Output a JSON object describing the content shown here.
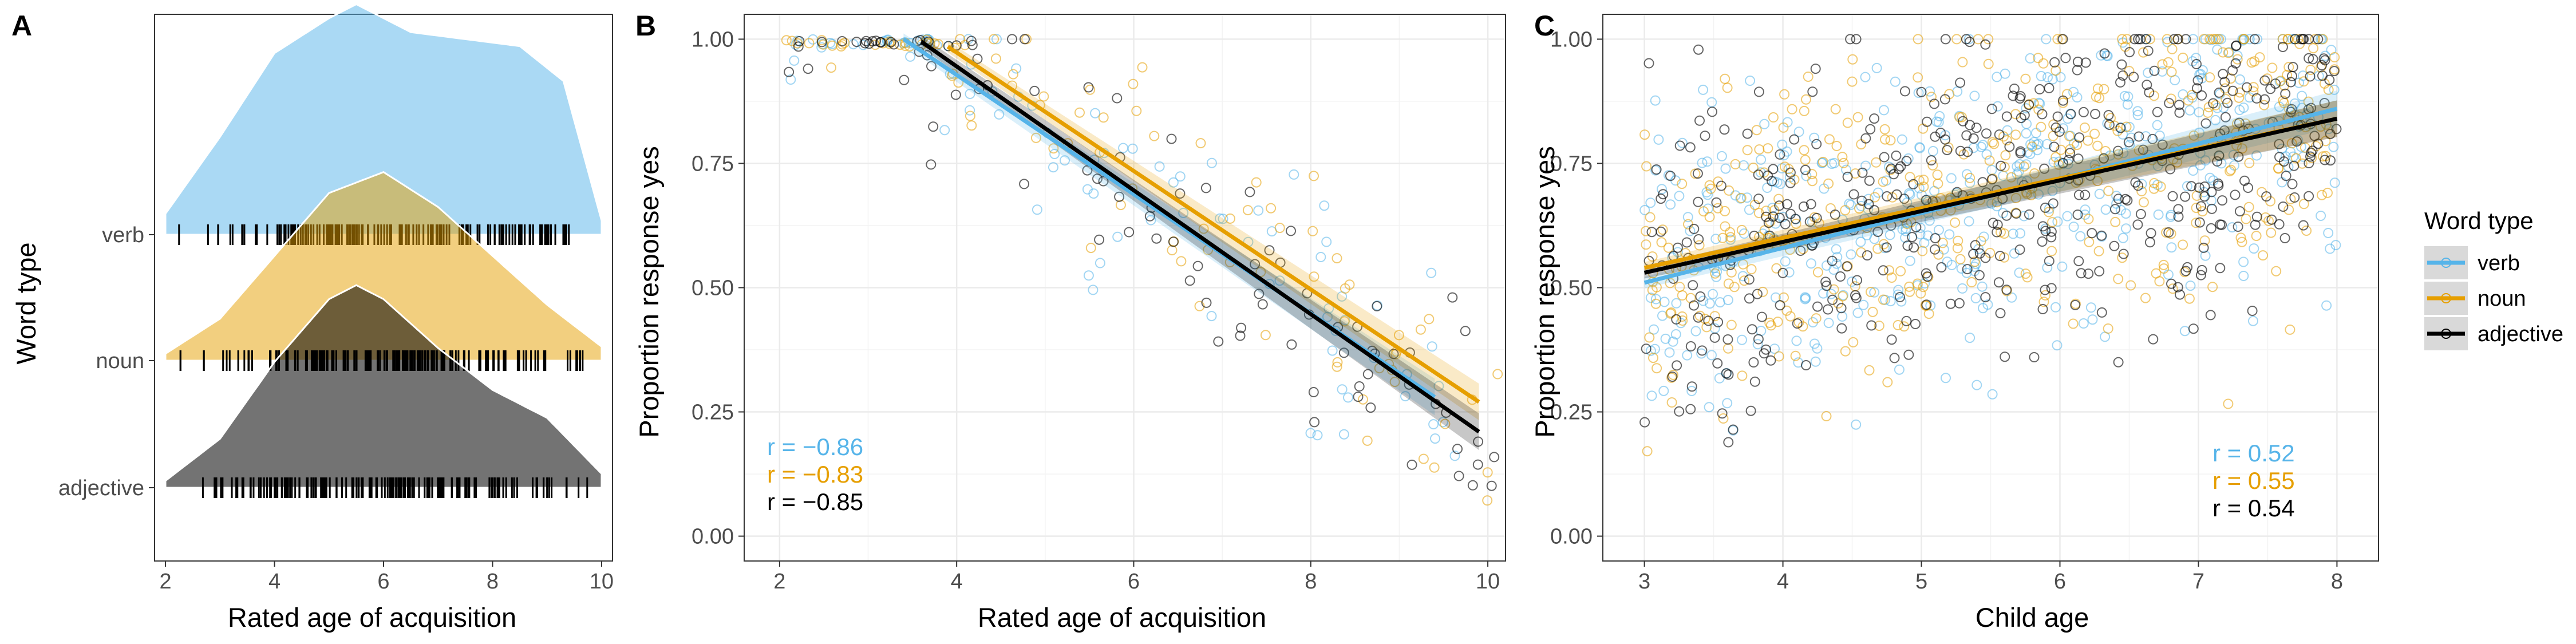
{
  "colors": {
    "verb": "#56B4E9",
    "noun": "#E69F00",
    "adjective": "#000000",
    "grid": "#EBEBEB",
    "border": "#333333",
    "axis_text": "#4D4D4D",
    "legend_key_bg": "#D9D9D9"
  },
  "legend": {
    "title": "Word type",
    "entries": [
      "verb",
      "noun",
      "adjective"
    ]
  },
  "chart_data": [
    {
      "panel": "A",
      "type": "area",
      "xlabel": "Rated age of acquisition",
      "ylabel": "Word type",
      "xlim": [
        1.8,
        10.2
      ],
      "xticks": [
        2,
        4,
        6,
        8,
        10
      ],
      "categories": [
        "verb",
        "noun",
        "adjective"
      ],
      "grid": false,
      "series": [
        {
          "name": "verb",
          "density_x": [
            2.0,
            3.0,
            4.0,
            5.0,
            5.5,
            6.5,
            7.5,
            8.5,
            9.3,
            10.0
          ],
          "density": [
            0.03,
            0.14,
            0.26,
            0.31,
            0.33,
            0.29,
            0.28,
            0.27,
            0.22,
            0.02
          ],
          "range": [
            2.1,
            9.4
          ]
        },
        {
          "name": "noun",
          "density_x": [
            2.0,
            3.0,
            4.0,
            5.0,
            6.0,
            7.0,
            8.0,
            9.0,
            10.0
          ],
          "density": [
            0.01,
            0.06,
            0.15,
            0.24,
            0.27,
            0.22,
            0.15,
            0.08,
            0.02
          ],
          "range": [
            2.0,
            9.8
          ]
        },
        {
          "name": "adjective",
          "density_x": [
            2.0,
            3.0,
            4.0,
            5.0,
            5.5,
            6.0,
            7.0,
            8.0,
            9.0,
            10.0
          ],
          "density": [
            0.01,
            0.07,
            0.18,
            0.27,
            0.29,
            0.27,
            0.2,
            0.14,
            0.1,
            0.02
          ],
          "range": [
            2.6,
            9.9
          ]
        }
      ]
    },
    {
      "panel": "B",
      "type": "scatter",
      "xlabel": "Rated age of acquisition",
      "ylabel": "Proportion response yes",
      "xlim": [
        1.6,
        10.2
      ],
      "ylim": [
        -0.05,
        1.05
      ],
      "xticks": [
        2,
        4,
        6,
        8,
        10
      ],
      "yticks": [
        0.0,
        0.25,
        0.5,
        0.75,
        1.0
      ],
      "ytick_labels": [
        "0.00",
        "0.25",
        "0.50",
        "0.75",
        "1.00"
      ],
      "grid": true,
      "series": [
        {
          "name": "verb",
          "fit": {
            "x": [
              3.4,
              9.4
            ],
            "y": [
              1.0,
              0.28
            ]
          },
          "r_label": "r = −0.86"
        },
        {
          "name": "noun",
          "fit": {
            "x": [
              3.9,
              9.9
            ],
            "y": [
              0.985,
              0.27
            ]
          },
          "r_label": "r = −0.83"
        },
        {
          "name": "adjective",
          "fit": {
            "x": [
              3.6,
              9.9
            ],
            "y": [
              0.995,
              0.21
            ]
          },
          "r_label": "r = −0.85"
        }
      ]
    },
    {
      "panel": "C",
      "type": "scatter",
      "xlabel": "Child age",
      "ylabel": "Proportion response yes",
      "xlim": [
        2.7,
        8.3
      ],
      "ylim": [
        -0.05,
        1.05
      ],
      "xticks": [
        3,
        4,
        5,
        6,
        7,
        8
      ],
      "yticks": [
        0.0,
        0.25,
        0.5,
        0.75,
        1.0
      ],
      "ytick_labels": [
        "0.00",
        "0.25",
        "0.50",
        "0.75",
        "1.00"
      ],
      "grid": true,
      "legend_position": "right",
      "series": [
        {
          "name": "verb",
          "fit": {
            "x": [
              3.0,
              8.0
            ],
            "y": [
              0.51,
              0.86
            ]
          },
          "r_label": "r = 0.52"
        },
        {
          "name": "noun",
          "fit": {
            "x": [
              3.0,
              8.0
            ],
            "y": [
              0.54,
              0.84
            ]
          },
          "r_label": "r = 0.55"
        },
        {
          "name": "adjective",
          "fit": {
            "x": [
              3.0,
              8.0
            ],
            "y": [
              0.53,
              0.84
            ]
          },
          "r_label": "r = 0.54"
        }
      ]
    }
  ]
}
